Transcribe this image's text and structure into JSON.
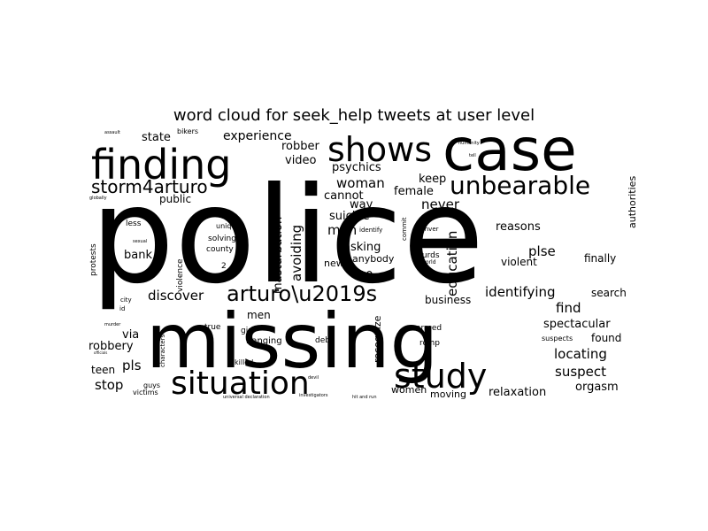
{
  "chart_data": {
    "type": "wordcloud",
    "title": "word cloud for seek_help tweets at user level",
    "background": "#ffffff",
    "word_color": "#000000",
    "words": [
      {
        "text": "police",
        "weight": 100,
        "rotated": false
      },
      {
        "text": "missing",
        "weight": 62,
        "rotated": false
      },
      {
        "text": "case",
        "weight": 50,
        "rotated": false
      },
      {
        "text": "finding",
        "weight": 38,
        "rotated": false
      },
      {
        "text": "situation",
        "weight": 34,
        "rotated": false
      },
      {
        "text": "study",
        "weight": 32,
        "rotated": false
      },
      {
        "text": "shows",
        "weight": 32,
        "rotated": false
      },
      {
        "text": "unbearable",
        "weight": 24,
        "rotated": false
      },
      {
        "text": "storm4arturo",
        "weight": 18,
        "rotated": false
      },
      {
        "text": "arturo\\u2019s",
        "weight": 20,
        "rotated": false
      },
      {
        "text": "experience",
        "weight": 12,
        "rotated": false
      },
      {
        "text": "education",
        "weight": 12,
        "rotated": true
      },
      {
        "text": "identifying",
        "weight": 12,
        "rotated": false
      },
      {
        "text": "discover",
        "weight": 12,
        "rotated": false
      },
      {
        "text": "woman",
        "weight": 12,
        "rotated": false
      },
      {
        "text": "never",
        "weight": 12,
        "rotated": false
      },
      {
        "text": "plse",
        "weight": 12,
        "rotated": false
      },
      {
        "text": "find",
        "weight": 12,
        "rotated": false
      },
      {
        "text": "locating",
        "weight": 12,
        "rotated": false
      },
      {
        "text": "suspect",
        "weight": 12,
        "rotated": false
      },
      {
        "text": "stop",
        "weight": 12,
        "rotated": false
      },
      {
        "text": "pls",
        "weight": 12,
        "rotated": false
      },
      {
        "text": "avoiding",
        "weight": 12,
        "rotated": true
      },
      {
        "text": "man",
        "weight": 12,
        "rotated": false
      },
      {
        "text": "masturbation",
        "weight": 10,
        "rotated": true
      },
      {
        "text": "psychics",
        "weight": 10,
        "rotated": false
      },
      {
        "text": "robber",
        "weight": 10,
        "rotated": false
      },
      {
        "text": "video",
        "weight": 10,
        "rotated": false
      },
      {
        "text": "state",
        "weight": 10,
        "rotated": false
      },
      {
        "text": "cannot",
        "weight": 10,
        "rotated": false
      },
      {
        "text": "female",
        "weight": 10,
        "rotated": false
      },
      {
        "text": "keep",
        "weight": 10,
        "rotated": false
      },
      {
        "text": "way",
        "weight": 10,
        "rotated": false
      },
      {
        "text": "suicide",
        "weight": 10,
        "rotated": false
      },
      {
        "text": "asking",
        "weight": 10,
        "rotated": false
      },
      {
        "text": "anybody",
        "weight": 9,
        "rotated": false
      },
      {
        "text": "news",
        "weight": 9,
        "rotated": false
      },
      {
        "text": "10",
        "weight": 10,
        "rotated": false
      },
      {
        "text": "reasons",
        "weight": 10,
        "rotated": false
      },
      {
        "text": "violent",
        "weight": 9,
        "rotated": false
      },
      {
        "text": "finally",
        "weight": 9,
        "rotated": false
      },
      {
        "text": "bank",
        "weight": 10,
        "rotated": false
      },
      {
        "text": "public",
        "weight": 9,
        "rotated": false
      },
      {
        "text": "business",
        "weight": 9,
        "rotated": false
      },
      {
        "text": "search",
        "weight": 9,
        "rotated": false
      },
      {
        "text": "spectacular",
        "weight": 10,
        "rotated": false
      },
      {
        "text": "found",
        "weight": 9,
        "rotated": false
      },
      {
        "text": "orgasm",
        "weight": 10,
        "rotated": false
      },
      {
        "text": "relaxation",
        "weight": 10,
        "rotated": false
      },
      {
        "text": "women",
        "weight": 9,
        "rotated": false
      },
      {
        "text": "moving",
        "weight": 9,
        "rotated": false
      },
      {
        "text": "recognize",
        "weight": 8,
        "rotated": true
      },
      {
        "text": "men",
        "weight": 9,
        "rotated": false
      },
      {
        "text": "via",
        "weight": 10,
        "rotated": false
      },
      {
        "text": "robbery",
        "weight": 10,
        "rotated": false
      },
      {
        "text": "teen",
        "weight": 9,
        "rotated": false
      },
      {
        "text": "hanging",
        "weight": 8,
        "rotated": false
      },
      {
        "text": "debt",
        "weight": 7,
        "rotated": false
      },
      {
        "text": "armed",
        "weight": 7,
        "rotated": false
      },
      {
        "text": "rcmp",
        "weight": 7,
        "rotated": false
      },
      {
        "text": "suspects",
        "weight": 6,
        "rotated": false
      },
      {
        "text": "kurds",
        "weight": 7,
        "rotated": false
      },
      {
        "text": "authorities",
        "weight": 9,
        "rotated": true
      },
      {
        "text": "protests",
        "weight": 7,
        "rotated": true
      },
      {
        "text": "violence",
        "weight": 7,
        "rotated": true
      },
      {
        "text": "solving",
        "weight": 7,
        "rotated": false
      },
      {
        "text": "county",
        "weight": 7,
        "rotated": false
      },
      {
        "text": "unique",
        "weight": 6,
        "rotated": false
      },
      {
        "text": "less",
        "weight": 7,
        "rotated": false
      },
      {
        "text": "true",
        "weight": 7,
        "rotated": false
      },
      {
        "text": "girl",
        "weight": 7,
        "rotated": false
      },
      {
        "text": "killed",
        "weight": 6,
        "rotated": false
      },
      {
        "text": "guys",
        "weight": 6,
        "rotated": false
      },
      {
        "text": "victims",
        "weight": 6,
        "rotated": false
      },
      {
        "text": "characters",
        "weight": 5,
        "rotated": true
      },
      {
        "text": "bikers",
        "weight": 6,
        "rotated": false
      },
      {
        "text": "identify",
        "weight": 5,
        "rotated": false
      },
      {
        "text": "commit",
        "weight": 5,
        "rotated": true
      },
      {
        "text": "2",
        "weight": 6,
        "rotated": false
      },
      {
        "text": "city",
        "weight": 5,
        "rotated": false
      },
      {
        "text": "id",
        "weight": 5,
        "rotated": false
      },
      {
        "text": "globally",
        "weight": 4,
        "rotated": false
      },
      {
        "text": "sexual",
        "weight": 4,
        "rotated": false
      },
      {
        "text": "assault",
        "weight": 3,
        "rotated": false
      },
      {
        "text": "officials",
        "weight": 3,
        "rotated": false
      },
      {
        "text": "murder",
        "weight": 3,
        "rotated": false
      },
      {
        "text": "denver",
        "weight": 5,
        "rotated": false
      },
      {
        "text": "world",
        "weight": 4,
        "rotated": false
      },
      {
        "text": "tell",
        "weight": 3,
        "rotated": false
      },
      {
        "text": "humanity",
        "weight": 3,
        "rotated": false
      },
      {
        "text": "universal declaration",
        "weight": 3,
        "rotated": false
      },
      {
        "text": "investigators",
        "weight": 3,
        "rotated": false
      },
      {
        "text": "hit and run",
        "weight": 3,
        "rotated": false
      },
      {
        "text": "devil",
        "weight": 3,
        "rotated": false
      },
      {
        "text": "loud",
        "weight": 3,
        "rotated": true
      }
    ]
  }
}
